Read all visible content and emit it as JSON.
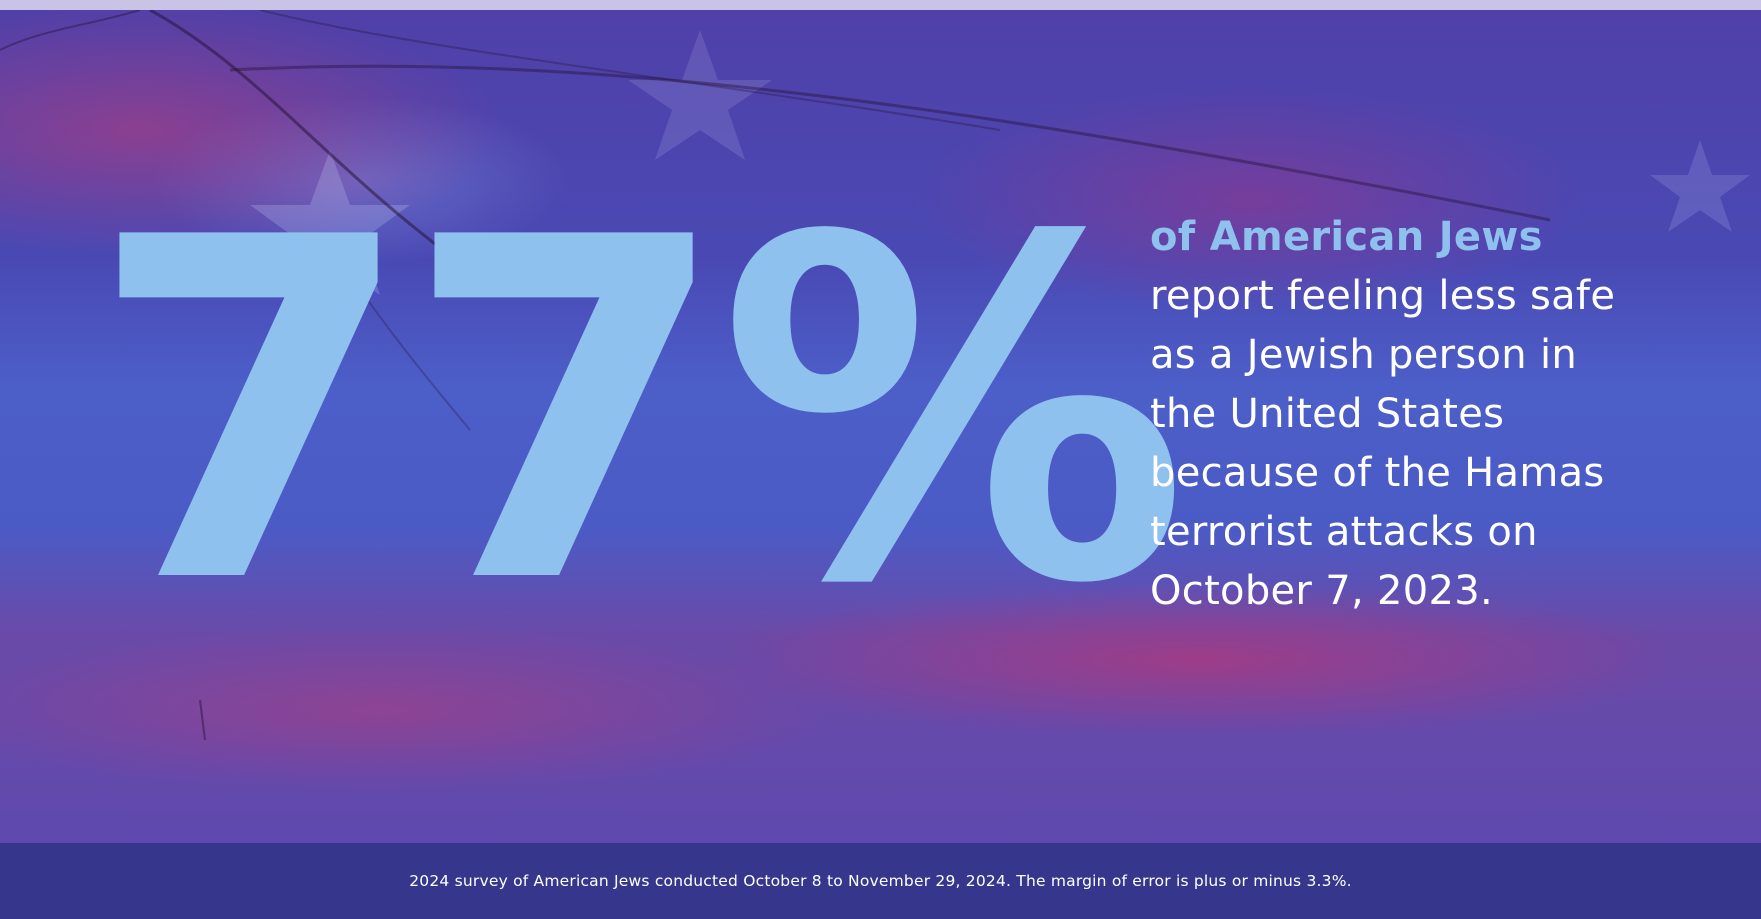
{
  "colors": {
    "background": "#4b5bc6",
    "stat": "#8fc1ee",
    "highlight": "#8fc1ee",
    "text": "#ffffff",
    "footer": "#35368c"
  },
  "stat": {
    "value": "77%"
  },
  "description": {
    "highlight": "of American Jews",
    "lines": [
      "report feeling less safe",
      "as a Jewish person in",
      "the United States",
      "because of the Hamas",
      "terrorist attacks on",
      "October 7, 2023."
    ]
  },
  "footnote": "2024 survey of American Jews conducted October 8 to November 29, 2024. The margin of error is plus or minus 3.3%."
}
